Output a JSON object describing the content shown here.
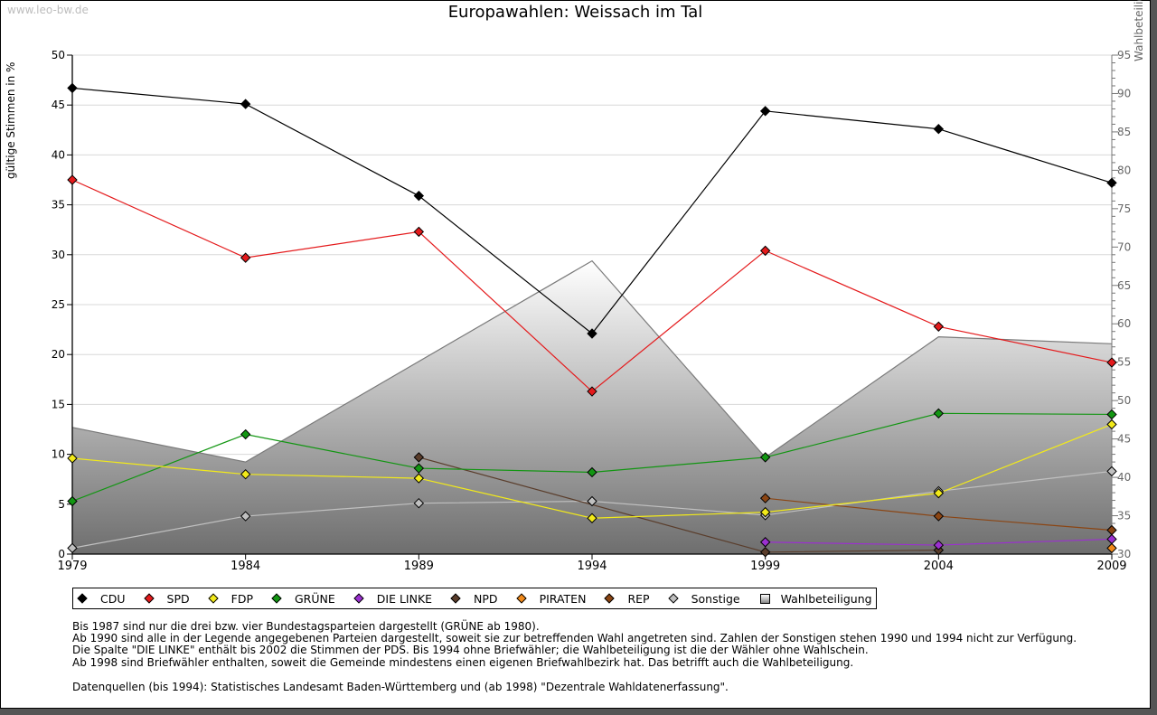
{
  "watermark": "www.leo-bw.de",
  "chart_data": {
    "type": "line",
    "title": "Europawahlen: Weissach im Tal",
    "ylabel": "gültige Stimmen in %",
    "ylabel_right": "Wahlbeteiligung in %",
    "x": [
      "1979",
      "1984",
      "1989",
      "1994",
      "1999",
      "2004",
      "2009"
    ],
    "ylim": [
      0,
      50
    ],
    "ylim_right": [
      30,
      95
    ],
    "yticks": [
      "0",
      "5",
      "10",
      "15",
      "20",
      "25",
      "30",
      "35",
      "40",
      "45",
      "50"
    ],
    "yticks_right": [
      "30",
      "35",
      "40",
      "45",
      "50",
      "55",
      "60",
      "65",
      "70",
      "75",
      "80",
      "85",
      "90",
      "95"
    ],
    "grid": true,
    "legend_position": "bottom",
    "series": [
      {
        "name": "CDU",
        "color": "#000000",
        "values": [
          46.7,
          45.1,
          35.9,
          22.1,
          44.4,
          42.6,
          37.2
        ]
      },
      {
        "name": "SPD",
        "color": "#e41a1c",
        "values": [
          37.5,
          29.7,
          32.3,
          16.3,
          30.4,
          22.8,
          19.2
        ]
      },
      {
        "name": "FDP",
        "color": "#f2ea1a",
        "values": [
          9.6,
          8.0,
          7.6,
          3.6,
          4.2,
          6.1,
          13.0
        ]
      },
      {
        "name": "GRÜNE",
        "color": "#129612",
        "values": [
          5.3,
          12.0,
          8.6,
          8.2,
          9.7,
          14.1,
          14.0
        ]
      },
      {
        "name": "DIE LINKE",
        "color": "#9b30d0",
        "values": [
          null,
          null,
          null,
          null,
          1.2,
          0.9,
          1.5
        ]
      },
      {
        "name": "NPD",
        "color": "#5a3d2b",
        "values": [
          null,
          null,
          9.7,
          null,
          0.2,
          0.4,
          null
        ]
      },
      {
        "name": "PIRATEN",
        "color": "#f28a1a",
        "values": [
          null,
          null,
          null,
          null,
          null,
          null,
          0.6
        ]
      },
      {
        "name": "REP",
        "color": "#8b4513",
        "values": [
          null,
          null,
          null,
          null,
          5.6,
          3.8,
          2.4
        ]
      },
      {
        "name": "Sonstige",
        "color": "#c0c0c0",
        "values": [
          0.6,
          3.8,
          5.1,
          5.3,
          3.9,
          6.3,
          8.3
        ]
      }
    ],
    "area_series": {
      "name": "Wahlbeteiligung",
      "axis": "right",
      "values": [
        46.5,
        42.0,
        null,
        68.2,
        42.6,
        58.3,
        57.4
      ]
    }
  },
  "notes": [
    "Bis 1987 sind nur die drei bzw. vier Bundestagsparteien dargestellt (GRÜNE ab 1980).",
    "Ab 1990 sind alle in der Legende angegebenen Parteien dargestellt, soweit sie zur betreffenden Wahl angetreten sind. Zahlen der Sonstigen stehen 1990 und 1994 nicht zur Verfügung.",
    "Die Spalte \"DIE LINKE\" enthält bis 2002 die Stimmen der PDS. Bis 1994 ohne Briefwähler; die Wahlbeteiligung ist die der Wähler ohne Wahlschein.",
    "Ab 1998 sind Briefwähler enthalten, soweit die Gemeinde mindestens einen eigenen Briefwahlbezirk hat. Das betrifft auch die Wahlbeteiligung."
  ],
  "source": "Datenquellen (bis 1994): Statistisches Landesamt Baden-Württemberg und (ab 1998) \"Dezentrale Wahldatenerfassung\"."
}
